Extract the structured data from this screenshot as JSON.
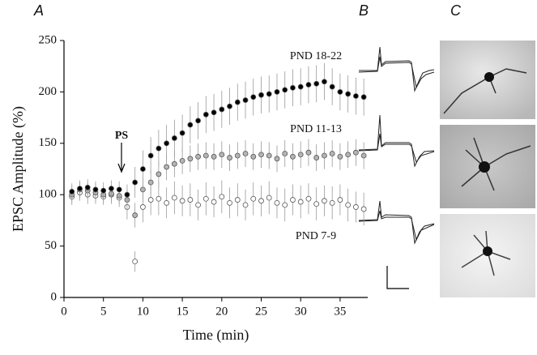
{
  "panel_labels": [
    "A",
    "B",
    "C"
  ],
  "chart_data": {
    "type": "scatter",
    "xlabel": "Time (min)",
    "ylabel": "EPSC Amplitude (%)",
    "xlim": [
      0,
      38.5
    ],
    "xticks": [
      0,
      5,
      10,
      15,
      20,
      25,
      30,
      35
    ],
    "ylim": [
      0,
      250
    ],
    "yticks": [
      0,
      50,
      100,
      150,
      200,
      250
    ],
    "annotations": [
      "PND 18-22",
      "PND 11-13",
      "PND 7-9",
      "PS"
    ],
    "x": [
      1,
      2,
      3,
      4,
      5,
      6,
      7,
      8,
      9,
      10,
      11,
      12,
      13,
      14,
      15,
      16,
      17,
      18,
      19,
      20,
      21,
      22,
      23,
      24,
      25,
      26,
      27,
      28,
      29,
      30,
      31,
      32,
      33,
      34,
      35,
      36,
      37,
      38
    ],
    "series": [
      {
        "name": "PND 7-9",
        "color": "#ffffff",
        "values": [
          98,
          102,
          100,
          99,
          98,
          100,
          97,
          88,
          35,
          88,
          95,
          96,
          92,
          97,
          94,
          95,
          90,
          96,
          93,
          98,
          92,
          95,
          90,
          96,
          94,
          97,
          92,
          90,
          95,
          93,
          96,
          91,
          94,
          92,
          95,
          90,
          88,
          86
        ],
        "errors": [
          8,
          8,
          9,
          8,
          8,
          9,
          9,
          12,
          10,
          15,
          15,
          16,
          15,
          16,
          15,
          16,
          15,
          16,
          15,
          16,
          15,
          16,
          15,
          16,
          15,
          16,
          15,
          16,
          15,
          16,
          15,
          16,
          15,
          16,
          15,
          16,
          15,
          16
        ]
      },
      {
        "name": "PND 11-13",
        "color": "#b4b4b4",
        "values": [
          100,
          105,
          104,
          102,
          100,
          101,
          99,
          95,
          80,
          105,
          112,
          120,
          127,
          130,
          133,
          135,
          137,
          138,
          137,
          139,
          136,
          138,
          140,
          137,
          139,
          138,
          135,
          140,
          137,
          139,
          141,
          136,
          138,
          140,
          137,
          139,
          141,
          138
        ],
        "errors": [
          8,
          8,
          8,
          8,
          8,
          8,
          8,
          10,
          12,
          12,
          12,
          13,
          13,
          13,
          13,
          13,
          13,
          13,
          13,
          13,
          13,
          13,
          13,
          13,
          13,
          13,
          13,
          13,
          13,
          13,
          13,
          13,
          13,
          13,
          13,
          13,
          13,
          13
        ]
      },
      {
        "name": "PND 18-22",
        "color": "#000000",
        "values": [
          103,
          106,
          107,
          105,
          104,
          106,
          105,
          100,
          112,
          125,
          138,
          145,
          150,
          155,
          160,
          168,
          172,
          178,
          180,
          183,
          186,
          190,
          192,
          195,
          197,
          198,
          200,
          202,
          204,
          205,
          207,
          208,
          210,
          205,
          200,
          198,
          196,
          195
        ],
        "errors": [
          8,
          8,
          8,
          8,
          8,
          8,
          8,
          10,
          15,
          18,
          18,
          18,
          18,
          18,
          18,
          18,
          18,
          18,
          18,
          18,
          18,
          18,
          18,
          18,
          18,
          18,
          18,
          18,
          18,
          18,
          18,
          18,
          18,
          18,
          18,
          18,
          18,
          18
        ]
      }
    ]
  }
}
